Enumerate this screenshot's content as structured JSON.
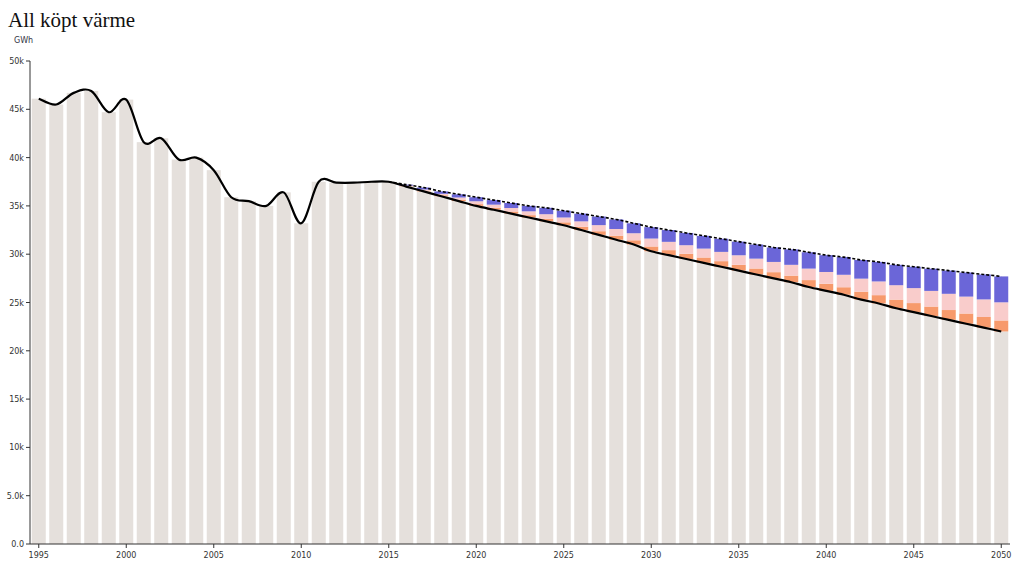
{
  "chart_data": {
    "type": "bar",
    "title": "All köpt värme",
    "y_label": "GWh",
    "stacked": true,
    "grid": false,
    "x": [
      1995,
      1996,
      1997,
      1998,
      1999,
      2000,
      2001,
      2002,
      2003,
      2004,
      2005,
      2006,
      2007,
      2008,
      2009,
      2010,
      2011,
      2012,
      2013,
      2014,
      2015,
      2016,
      2017,
      2018,
      2019,
      2020,
      2021,
      2022,
      2023,
      2024,
      2025,
      2026,
      2027,
      2028,
      2029,
      2030,
      2031,
      2032,
      2033,
      2034,
      2035,
      2036,
      2037,
      2038,
      2039,
      2040,
      2041,
      2042,
      2043,
      2044,
      2045,
      2046,
      2047,
      2048,
      2049,
      2050
    ],
    "xlim": [
      1994.5,
      2050.5
    ],
    "xticks": [
      1995,
      2000,
      2005,
      2010,
      2015,
      2020,
      2025,
      2030,
      2035,
      2040,
      2045,
      2050
    ],
    "ylim": [
      0,
      50000
    ],
    "yticks": [
      {
        "value": 0,
        "label": "0.0"
      },
      {
        "value": 5000,
        "label": "5.0k"
      },
      {
        "value": 10000,
        "label": "10k"
      },
      {
        "value": 15000,
        "label": "15k"
      },
      {
        "value": 20000,
        "label": "20k"
      },
      {
        "value": 25000,
        "label": "25k"
      },
      {
        "value": 30000,
        "label": "30k"
      },
      {
        "value": 35000,
        "label": "35k"
      },
      {
        "value": 40000,
        "label": "40k"
      },
      {
        "value": 45000,
        "label": "45k"
      },
      {
        "value": 50000,
        "label": "50k"
      }
    ],
    "series": [
      {
        "type": "bar",
        "color": "#e5e0dc",
        "values": [
          46100,
          45500,
          46700,
          46900,
          44700,
          46000,
          41600,
          42000,
          39800,
          40000,
          38700,
          35900,
          35500,
          35000,
          36400,
          33200,
          37500,
          37400,
          37400,
          37500,
          37500,
          37000,
          36500,
          36000,
          35500,
          35000,
          34600,
          34200,
          33800,
          33400,
          33000,
          32500,
          32000,
          31500,
          31000,
          30300,
          29900,
          29500,
          29100,
          28700,
          28300,
          27900,
          27500,
          27100,
          26600,
          26200,
          25800,
          25300,
          24900,
          24400,
          24000,
          23600,
          23200,
          22800,
          22400,
          22000
        ]
      },
      {
        "type": "bar",
        "color": "#f79a6c",
        "values": [
          null,
          null,
          null,
          null,
          null,
          null,
          null,
          null,
          null,
          null,
          null,
          null,
          null,
          null,
          null,
          null,
          null,
          null,
          null,
          null,
          null,
          40,
          80,
          100,
          140,
          180,
          200,
          220,
          240,
          280,
          300,
          340,
          380,
          420,
          440,
          500,
          520,
          540,
          560,
          580,
          600,
          620,
          640,
          680,
          720,
          740,
          780,
          820,
          860,
          900,
          940,
          980,
          1020,
          1060,
          1100,
          1140
        ]
      },
      {
        "type": "bar",
        "color": "#f9cccb",
        "values": [
          null,
          null,
          null,
          null,
          null,
          null,
          null,
          null,
          null,
          null,
          null,
          null,
          null,
          null,
          null,
          null,
          null,
          null,
          null,
          null,
          null,
          60,
          120,
          150,
          230,
          300,
          330,
          360,
          400,
          460,
          500,
          560,
          630,
          690,
          730,
          820,
          860,
          890,
          920,
          960,
          990,
          1020,
          1060,
          1120,
          1190,
          1220,
          1290,
          1350,
          1420,
          1490,
          1550,
          1620,
          1680,
          1750,
          1820,
          1880
        ]
      },
      {
        "type": "bar",
        "color": "#6b66d8",
        "values": [
          null,
          null,
          null,
          null,
          null,
          null,
          null,
          null,
          null,
          null,
          null,
          null,
          null,
          null,
          null,
          null,
          null,
          null,
          null,
          null,
          null,
          100,
          200,
          250,
          330,
          420,
          470,
          520,
          560,
          660,
          700,
          800,
          890,
          990,
          1030,
          1180,
          1220,
          1270,
          1320,
          1360,
          1410,
          1460,
          1500,
          1600,
          1690,
          1740,
          1830,
          1930,
          2020,
          2110,
          2210,
          2300,
          2400,
          2490,
          2580,
          2680
        ]
      },
      {
        "type": "line",
        "color": "#000000",
        "line_style": "solid",
        "values": [
          46100,
          45500,
          46700,
          46900,
          44700,
          46000,
          41600,
          42000,
          39800,
          40000,
          38700,
          35900,
          35500,
          35000,
          36400,
          33200,
          37500,
          37400,
          37400,
          37500,
          37500,
          37000,
          36500,
          36000,
          35500,
          35000,
          34600,
          34200,
          33800,
          33400,
          33000,
          32500,
          32000,
          31500,
          31000,
          30300,
          29900,
          29500,
          29100,
          28700,
          28300,
          27900,
          27500,
          27100,
          26600,
          26200,
          25800,
          25300,
          24900,
          24400,
          24000,
          23600,
          23200,
          22800,
          22400,
          22000
        ]
      },
      {
        "type": "line",
        "color": "#000000",
        "line_style": "dashed",
        "values": [
          null,
          null,
          null,
          null,
          null,
          null,
          null,
          null,
          null,
          null,
          null,
          null,
          null,
          null,
          null,
          null,
          null,
          null,
          null,
          null,
          37500,
          37200,
          36900,
          36500,
          36200,
          35900,
          35600,
          35300,
          35000,
          34800,
          34500,
          34200,
          33900,
          33600,
          33200,
          32800,
          32500,
          32200,
          31900,
          31600,
          31300,
          31000,
          30700,
          30500,
          30200,
          29900,
          29700,
          29400,
          29200,
          28900,
          28700,
          28500,
          28300,
          28100,
          27900,
          27700
        ]
      }
    ]
  }
}
